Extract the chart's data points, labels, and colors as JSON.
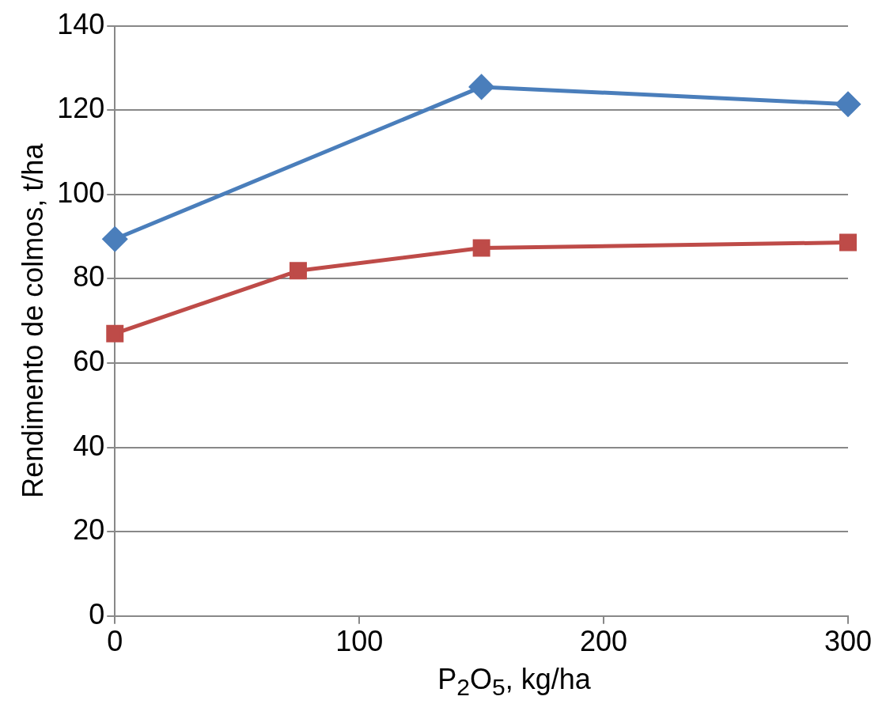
{
  "chart_data": {
    "type": "line",
    "xlabel": "P$_{2}$O$_{5}$, kg/ha",
    "ylabel": "Rendimento de colmos, t/ha",
    "series": [
      {
        "color": "#4a7ebb",
        "marker": "diamond",
        "x": [
          0,
          150,
          300
        ],
        "values": [
          89.4,
          125.5,
          121.4
        ]
      },
      {
        "color": "#be4b48",
        "marker": "square",
        "x": [
          0,
          75,
          150,
          300
        ],
        "values": [
          67,
          81.9,
          87.3,
          88.6
        ]
      }
    ],
    "xlim": [
      0,
      300
    ],
    "xticks": [
      0,
      100,
      200,
      300
    ],
    "ylim": [
      0,
      140
    ],
    "yticks": [
      0,
      20,
      40,
      60,
      80,
      100,
      120,
      140
    ],
    "grid": "y",
    "legend": false,
    "line_style": "solid"
  }
}
